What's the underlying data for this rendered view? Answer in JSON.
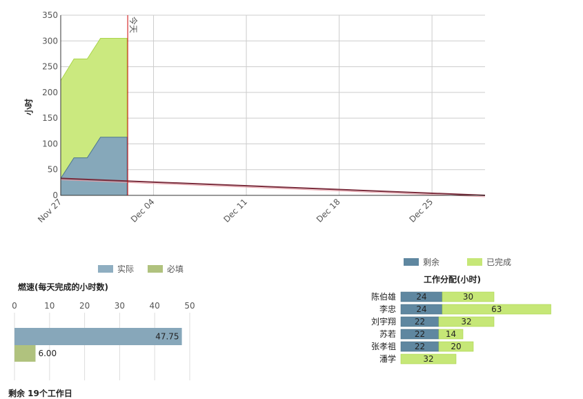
{
  "chart_data": [
    {
      "type": "area",
      "ylabel": "小时",
      "ylim": [
        0,
        350
      ],
      "y_ticks": [
        0,
        50,
        100,
        150,
        200,
        250,
        300,
        350
      ],
      "x_ticks": [
        "Nov 27",
        "Dec 04",
        "Dec 11",
        "Dec 18",
        "Dec 25"
      ],
      "today_marker": "今天",
      "series": [
        {
          "name": "剩余",
          "color": "#5f87a0",
          "points": [
            [
              "2023-11-27",
              33
            ],
            [
              "2023-11-28",
              73
            ],
            [
              "2023-11-29",
              73
            ],
            [
              "2023-11-30",
              113
            ],
            [
              "2023-12-01",
              113
            ],
            [
              "2023-12-02",
              113
            ]
          ]
        },
        {
          "name": "已完成",
          "color": "#c6e777",
          "points": [
            [
              "2023-11-27",
              223
            ],
            [
              "2023-11-28",
              265
            ],
            [
              "2023-11-29",
              265
            ],
            [
              "2023-11-30",
              305
            ],
            [
              "2023-12-01",
              305
            ],
            [
              "2023-12-02",
              305
            ]
          ]
        }
      ],
      "ideal_line": [
        [
          "2023-11-27",
          33
        ],
        [
          "2023-12-29",
          0
        ]
      ],
      "grid": true
    },
    {
      "type": "bar",
      "orientation": "horizontal",
      "title": "燃速(每天完成的小时数)",
      "xlim": [
        0,
        50
      ],
      "x_ticks": [
        0,
        10,
        20,
        30,
        40,
        50
      ],
      "series": [
        {
          "name": "实际",
          "value": 47.75,
          "label": "47.75",
          "color": "#7f9fb3"
        },
        {
          "name": "必填",
          "value": 6.0,
          "label": "6.00",
          "color": "#a9bd74"
        }
      ],
      "legend": "top"
    },
    {
      "type": "bar",
      "orientation": "horizontal",
      "stacked": true,
      "title": "工作分配(小时)",
      "categories": [
        "陈伯雄",
        "李忠",
        "刘宇翔",
        "苏若",
        "张孝祖",
        "潘学"
      ],
      "series": [
        {
          "name": "剩余",
          "color": "#5f87a0",
          "values": [
            24,
            24,
            22,
            22,
            22,
            0
          ]
        },
        {
          "name": "已完成",
          "color": "#c6e777",
          "values": [
            30,
            63,
            32,
            14,
            20,
            32
          ]
        }
      ],
      "legend": "top"
    }
  ],
  "footer_text": "剩余 19个工作日"
}
